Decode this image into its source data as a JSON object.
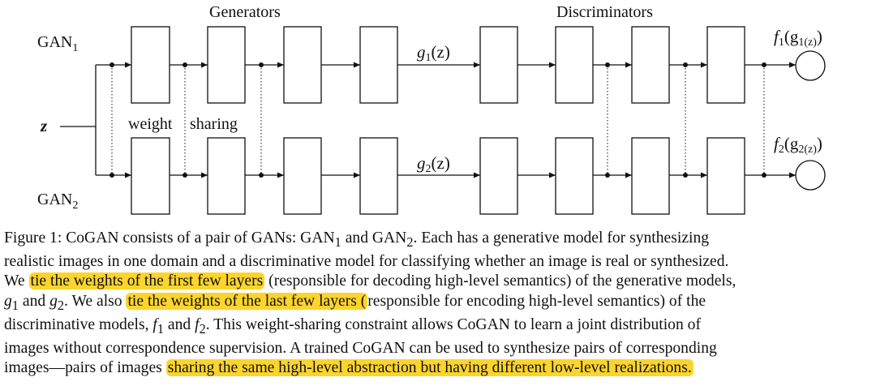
{
  "diagram": {
    "generators_label": "Generators",
    "discriminators_label": "Discriminators",
    "gan1": {
      "main": "GAN",
      "sub": "1"
    },
    "gan2": {
      "main": "GAN",
      "sub": "2"
    },
    "z": "z",
    "weight_label": "weight",
    "sharing_label": "sharing",
    "g1": {
      "fn": "g",
      "idx": "1",
      "arg": "(z)"
    },
    "g2": {
      "fn": "g",
      "idx": "2",
      "arg": "(z)"
    },
    "f1": {
      "fn": "f",
      "idx": "1",
      "open": "(g",
      "inner": "1(z)",
      "close": ")"
    },
    "f2": {
      "fn": "f",
      "idx": "2",
      "open": "(g",
      "inner": "2(z)",
      "close": ")"
    }
  },
  "caption": {
    "line1": {
      "a": "Figure 1: CoGAN consists of a pair of GANs: GAN",
      "a_sub": "1",
      "b": " and GAN",
      "b_sub": "2",
      "c": ". Each has a generative model for synthesizing"
    },
    "line2": "realistic images in one domain and a discriminative model for classifying whether an image is real or synthesized.",
    "line3": {
      "a": "We ",
      "hl": "tie the weights of the first few layers",
      "b": " (responsible for decoding high-level semantics) of the generative models,"
    },
    "line4": {
      "g1": "g",
      "g1_sub": "1",
      "a": " and ",
      "g2": "g",
      "g2_sub": "2",
      "b": ". We also ",
      "hl": "tie the weights of the last few layers (",
      "c": "responsible for encoding high-level semantics) of the"
    },
    "line5": {
      "a": "discriminative models, ",
      "f1": "f",
      "f1_sub": "1",
      "b": " and ",
      "f2": "f",
      "f2_sub": "2",
      "c": ". This weight-sharing constraint allows CoGAN to learn a joint distribution of"
    },
    "line6": "images without correspondence supervision. A trained CoGAN can be used to synthesize pairs of corresponding",
    "line7": {
      "a": "images—pairs of images ",
      "hl": "sharing the same high-level abstraction but having different low-level realizations."
    }
  }
}
